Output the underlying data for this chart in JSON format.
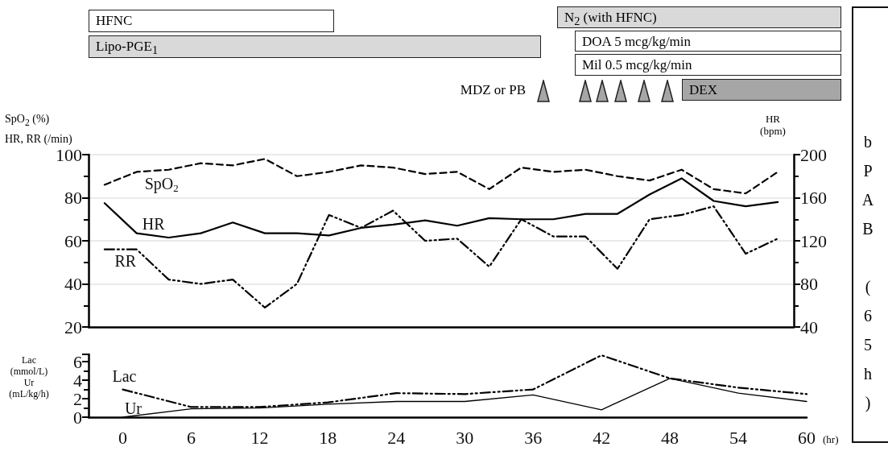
{
  "chart_data": [
    {
      "type": "other",
      "annotations": [
        "HFNC",
        "Lipo-PGE$_{1}$",
        "N$_{2}$ (with HFNC)",
        "DOA 5 mcg/kg/min",
        "Mil 0.5 mcg/kg/min",
        "DEX",
        "MDZ or PB",
        "bPAB (65h)"
      ]
    },
    {
      "type": "line",
      "ylabel": "SpO$_{2}$ (%)\nHR, RR (/min)",
      "y2label": "HR\n(bpm)",
      "categories": [
        null,
        null,
        null,
        null,
        null,
        null,
        null,
        null,
        null,
        null,
        null,
        null,
        null,
        null,
        null,
        null,
        null,
        null,
        null,
        null,
        null,
        null
      ],
      "ylim": [
        20,
        100
      ],
      "yticks": [
        20,
        40,
        60,
        80,
        100
      ],
      "y2lim": [
        40,
        200
      ],
      "y2ticks": [
        40,
        80,
        120,
        160,
        200
      ],
      "grid": "y",
      "tick_labels": "y",
      "series": [
        {
          "name": "SpO$_{2}$",
          "color": "#000000",
          "line_style": "dashed",
          "values": [
            86,
            92,
            93,
            96,
            95,
            98,
            90,
            92,
            95,
            94,
            91,
            92,
            84,
            94,
            92,
            93,
            90,
            88,
            93,
            84,
            82,
            92
          ]
        },
        {
          "name": "HR",
          "color": "#000000",
          "axis": "y2",
          "line_style": "solid",
          "values": [
            155,
            127,
            123,
            127,
            137,
            127,
            127,
            125,
            132,
            135,
            139,
            134,
            141,
            140,
            140,
            145,
            145,
            163,
            178,
            157,
            152,
            156
          ]
        },
        {
          "name": "RR",
          "color": "#000000",
          "line_style": "dotted",
          "values": [
            56,
            56,
            42,
            40,
            42,
            29,
            40,
            72,
            66,
            74,
            60,
            61,
            48,
            70,
            62,
            62,
            47,
            70,
            72,
            76,
            54,
            61
          ]
        }
      ]
    },
    {
      "type": "line",
      "xlabel": "(hr)",
      "ylabel": "Lac\n(mmol/L)\nUr\n(mL/kg/h)",
      "x": [
        0,
        6,
        12,
        18,
        24,
        30,
        36,
        42,
        48,
        54,
        60
      ],
      "xlim": [
        -3,
        60
      ],
      "xticks": [
        0,
        6,
        12,
        18,
        24,
        30,
        36,
        42,
        48,
        54,
        60
      ],
      "ylim": [
        0,
        6.8
      ],
      "yticks": [
        0,
        2,
        4,
        6
      ],
      "series": [
        {
          "name": "Lac",
          "color": "#000000",
          "line_style": "dotted",
          "values": [
            3.0,
            1.1,
            1.1,
            1.6,
            2.6,
            2.5,
            3.0,
            6.7,
            4.2,
            3.2,
            2.5
          ]
        },
        {
          "name": "Ur",
          "color": "#000000",
          "line_style": "solid",
          "values": [
            0,
            0.9,
            1.0,
            1.4,
            1.7,
            1.7,
            2.4,
            0.8,
            4.2,
            2.6,
            1.7
          ]
        }
      ]
    }
  ]
}
